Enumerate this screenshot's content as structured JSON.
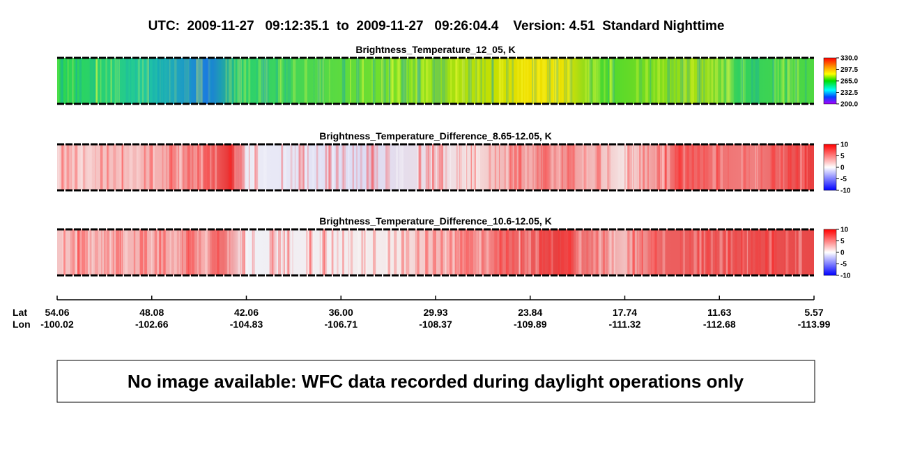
{
  "title": "UTC:  2009-11-27   09:12:35.1  to  2009-11-27   09:26:04.4    Version: 4.51  Standard Nighttime",
  "panels": [
    {
      "title": "Brightness_Temperature_12_05, K",
      "colorbar": {
        "range": [
          200,
          330
        ],
        "ticks": [
          {
            "value": 330,
            "label": "330.0"
          },
          {
            "value": 297.5,
            "label": "297.5"
          },
          {
            "value": 265,
            "label": "265.0"
          },
          {
            "value": 232.5,
            "label": "232.5"
          },
          {
            "value": 200,
            "label": "200.0"
          }
        ]
      }
    },
    {
      "title": "Brightness_Temperature_Difference_8.65-12.05, K",
      "colorbar": {
        "range": [
          -10,
          10
        ],
        "ticks": [
          10,
          5,
          0,
          -5,
          -10
        ]
      }
    },
    {
      "title": "Brightness_Temperature_Difference_10.6-12.05, K",
      "colorbar": {
        "range": [
          -10,
          10
        ],
        "ticks": [
          10,
          5,
          0,
          -5,
          -10
        ]
      }
    }
  ],
  "axis": {
    "lat_label": "Lat",
    "lon_label": "Lon",
    "lat": [
      "54.06",
      "48.08",
      "42.06",
      "36.00",
      "29.93",
      "23.84",
      "17.74",
      "11.63",
      "5.57"
    ],
    "lon": [
      "-100.02",
      "-102.66",
      "-104.83",
      "-106.71",
      "-108.37",
      "-109.89",
      "-111.32",
      "-112.68",
      "-113.99"
    ]
  },
  "message": "No image available: WFC data recorded during daylight operations only"
}
